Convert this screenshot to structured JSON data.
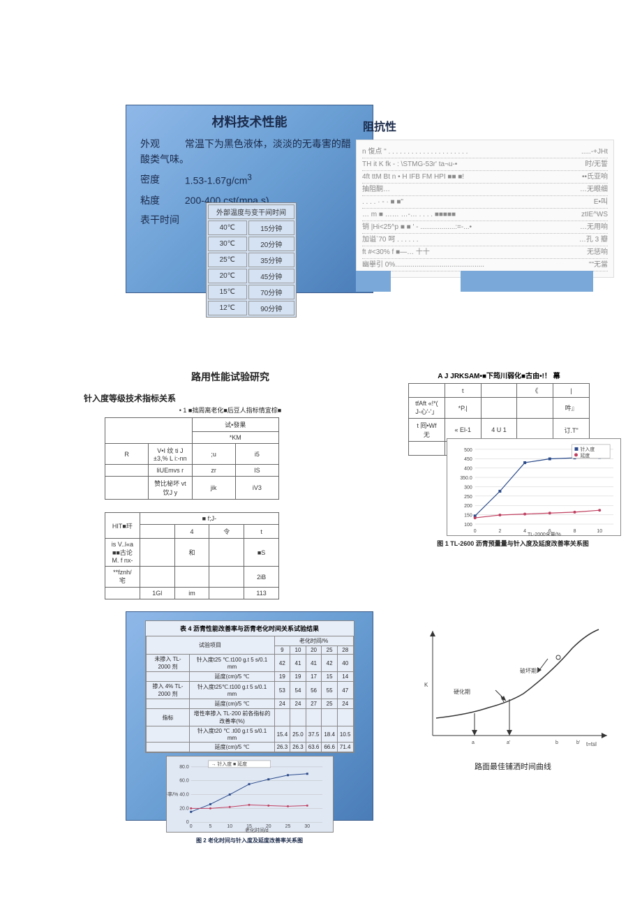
{
  "panel1": {
    "title": "材料技术性能",
    "appearance_label": "外观",
    "appearance_value": "常温下为黑色液体，淡淡的无毒害的醋酸类气味。",
    "density_label": "密度",
    "density_value": "1.53-1.67g/cm",
    "density_sup": "3",
    "viscosity_label": "粘度",
    "viscosity_value": "200-400 cst(mpa.s)",
    "dry_label": "表干时间",
    "table_header_left": "外部温度与变干间时间",
    "table_rows": [
      [
        "40℃",
        "15分钟"
      ],
      [
        "30℃",
        "20分钟"
      ],
      [
        "25℃",
        "35分钟"
      ],
      [
        "20℃",
        "45分钟"
      ],
      [
        "15℃",
        "70分钟"
      ],
      [
        "12℃",
        "90分钟"
      ]
    ]
  },
  "rightTop": {
    "title": "阻抗性",
    "rows": [
      {
        "l": "n 愎点 \" . . . . . . . . . . . . . . . . . . . . .",
        "r": ".....-+JHt"
      },
      {
        "l": "TH it K fk - : \\STMG-53r' ta¬u-•",
        "r": "时/无誓"
      },
      {
        "l": "4ft ttM Bt        n • H IFB FM HPI ■■ ■!",
        "r": "••氏亚响"
      },
      {
        "l": "抽阻酮…",
        "r": "…无眼细"
      },
      {
        "l": "                          . . . . · - · ■ ■\"",
        "r": "E•叫"
      },
      {
        "l": "… m ■   ……   …-… . . . . ■■■■■",
        "r": "ztIE^WS"
      },
      {
        "l": "销  |Hi<25^p ■ ■ ' - ..................:=-...•",
        "r": "…无用响"
      },
      {
        "l": "加谥`70 呵 . . . . . .",
        "r": "…孔 3 瓣"
      },
      {
        "l": "ft #<30% f ■—… 十十",
        "r": "无惩响"
      },
      {
        "l": "幽擧引 0%..............................................",
        "r": "\"\"无當"
      }
    ]
  },
  "sec2": {
    "title": "路用性能试验研究",
    "subtitle": "针入度等级技术指标关系",
    "note": "• 1 ■拙周离老化■后豆人指标情宜棕■",
    "tbl1_h1": "试•發果",
    "tbl1_h2": "*KM",
    "tbl1_rows": [
      [
        "R",
        "V•I 纹 ti J ±3,% L i:-nn",
        ";u",
        "i5"
      ],
      [
        "",
        "liUEmvs r",
        "zr",
        "IS"
      ],
      [
        "",
        "赞比柲坏 vt 饮J y",
        "jik",
        "iV3"
      ]
    ],
    "tbl2_h1": "HIT■玕",
    "tbl2_h2": "■ f;J-",
    "tbl2_cols": [
      "",
      "4",
      "令",
      "t"
    ],
    "tbl2_rows": [
      [
        "is V..l«a ■■古论 M. f nx-",
        "",
        "和",
        "",
        "■S"
      ],
      [
        "**fznh/ 宅",
        "",
        "",
        "",
        "2iB"
      ],
      [
        "",
        "1Gl",
        "im",
        "",
        "113"
      ]
    ]
  },
  "sec2r": {
    "title": "A J JRKSAM•■下筠川弱化■古由•!！ 幕",
    "tbl": {
      "r1": [
        "",
        "t",
        "",
        "《",
        "|"
      ],
      "r2": [
        "tfAft «!*(         J-心'-'」",
        "*P.|",
        "",
        "",
        "吽』"
      ],
      "r3": [
        "     t  囘•Wf 无",
        "« El-1",
        "4 U 1",
        "",
        "订.T\""
      ],
      "r4": [
        "",
        "厥尊 /·■",
        "",
        "",
        "■卓 ■.\\"
      ]
    },
    "chart": {
      "ylabels": [
        "500",
        "450",
        "400",
        "350.0",
        "300",
        "250",
        "200",
        "150",
        "100"
      ],
      "xlabels": [
        "0",
        "2",
        "4",
        "6",
        "8",
        "10"
      ],
      "xaxis": "TL-2000含量/%",
      "legend": [
        "针入度",
        "延度"
      ],
      "series1": [
        150,
        280,
        430,
        450,
        455,
        458
      ],
      "series2": [
        140,
        155,
        160,
        165,
        170,
        180
      ],
      "color1": "#2a4a8a",
      "color2": "#c04060"
    },
    "caption": "图 1  TL-2600 沥青预量量与针入度及延度改善率关系图"
  },
  "panel3": {
    "table_title": "表 4  沥青性能改善率与沥青老化时间关系试验结果",
    "col_group": "老化时间/%",
    "cols": [
      "试验项目",
      "9",
      "10",
      "20",
      "25",
      "28"
    ],
    "rows": [
      [
        "未掺入 TL-2000 剂",
        "针入度t25 ℃.t100 g.t 5 s/0.1 mm",
        "42",
        "41",
        "41",
        "42",
        "40"
      ],
      [
        "",
        "延度(cm)/5 ℃",
        "19",
        "19",
        "17",
        "15",
        "14"
      ],
      [
        "掺入 4% TL-2000 剂",
        "针入度t25℃.t100 g.t 5 s/0.1 mm",
        "53",
        "54",
        "56",
        "55",
        "47"
      ],
      [
        "",
        "延度(cm)/5 ℃",
        "24",
        "24",
        "27",
        "25",
        "24"
      ],
      [
        "指标",
        "增性率掺入 TL-200 前各指标的改善率(%)",
        "",
        "",
        "",
        "",
        ""
      ],
      [
        "",
        "针入度t20 ℃ .t00 g.t 5 s/0.1 mm",
        "15.4",
        "25.0",
        "37.5",
        "18.4",
        "10.5"
      ],
      [
        "",
        "延度(cm)/5 ℃",
        "26.3",
        "26.3",
        "63.6",
        "66.6",
        "71.4"
      ]
    ],
    "chart": {
      "ylabels": [
        "80.0",
        "60.0",
        "改善率/% 40.0",
        "20.0",
        "0"
      ],
      "xlabels": [
        "0",
        "5",
        "10",
        "15",
        "20",
        "25",
        "30"
      ],
      "xaxis": "老化时间/d",
      "legend": "→ 针入度 ■ 延度",
      "series1": [
        15,
        26,
        40,
        55,
        62,
        68,
        70
      ],
      "series2": [
        20,
        20,
        22,
        25,
        24,
        23,
        24
      ]
    },
    "caption": "图 2  老化时间与针入度及延度改善率关系图"
  },
  "rightChart": {
    "yaxis_label": "K",
    "xaxis_label": "t=tsl",
    "curve_label1": "破坏期",
    "curve_label2": "硬化期",
    "points": [
      "a",
      "a'",
      "b",
      "b'"
    ],
    "caption": "路面最佳铺洒时间曲线",
    "curve_color": "#333333"
  }
}
